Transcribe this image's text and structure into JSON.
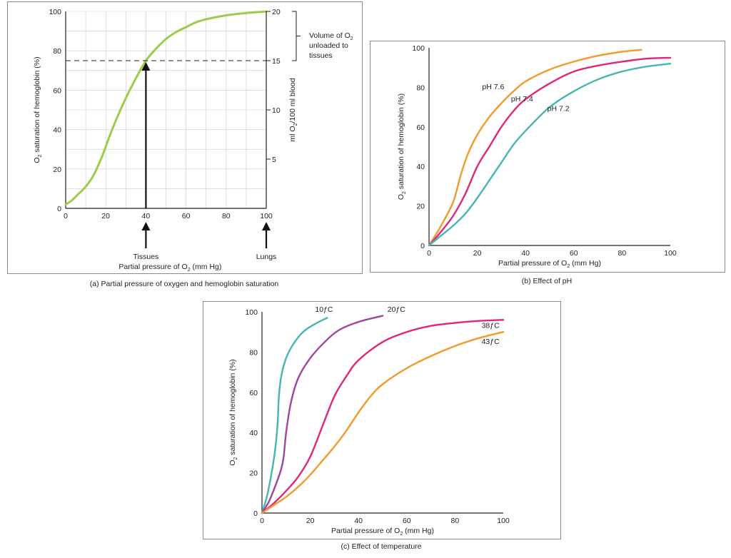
{
  "colors": {
    "green": "#9bcc4e",
    "orange": "#f39a2c",
    "magenta": "#e0267a",
    "teal": "#45b6b4",
    "grid": "#cccccc",
    "axis": "#222222"
  },
  "chart_data": [
    {
      "id": "a",
      "type": "line",
      "caption": "(a) Partial pressure of oxygen and hemoglobin saturation",
      "xlabel_main": "Partial pressure of O",
      "xlabel_sub": "2",
      "xlabel_end": " (mm Hg)",
      "ylabel_main": "O",
      "ylabel_sub": "2",
      "ylabel_end": " saturation of hemoglobin (%)",
      "y2label_main": "ml O",
      "y2label_sub": "2",
      "y2label_end": "/100 ml blood",
      "xlim": [
        0,
        100
      ],
      "ylim": [
        0,
        100
      ],
      "y2lim": [
        0,
        20
      ],
      "x_ticks": [
        "0",
        "20",
        "40",
        "60",
        "80",
        "100"
      ],
      "y_ticks": [
        "0",
        "20",
        "40",
        "60",
        "80",
        "100"
      ],
      "y2_ticks": [
        "5",
        "10",
        "15",
        "20"
      ],
      "grid": true,
      "series": [
        {
          "color": "#9bcc4e",
          "x": [
            0,
            3,
            6,
            10,
            14,
            18,
            22,
            26,
            30,
            35,
            40,
            45,
            50,
            55,
            60,
            65,
            70,
            80,
            90,
            100
          ],
          "y": [
            2,
            4,
            7,
            11,
            17,
            26,
            37,
            47,
            56,
            66,
            75,
            81,
            86,
            89.5,
            92,
            94.5,
            96,
            98,
            99.2,
            100
          ]
        }
      ],
      "dashed_line_y": 75,
      "arrow_at_x": 40,
      "annotations": {
        "volume_line1": "Volume of O",
        "volume_sub": "2",
        "volume_line2": "unloaded to",
        "volume_line3": "tissues",
        "tissues": "Tissues",
        "lungs": "Lungs"
      }
    },
    {
      "id": "b",
      "type": "line",
      "caption": "(b) Effect of pH",
      "xlabel_main": "Partial pressure of O",
      "xlabel_sub": "2",
      "xlabel_end": " (mm Hg)",
      "ylabel_main": "O",
      "ylabel_sub": "2",
      "ylabel_end": " saturation of hemoglobin (%)",
      "xlim": [
        0,
        100
      ],
      "ylim": [
        0,
        100
      ],
      "x_ticks": [
        "0",
        "20",
        "40",
        "60",
        "80",
        "100"
      ],
      "y_ticks": [
        "0",
        "20",
        "40",
        "60",
        "80",
        "100"
      ],
      "grid": false,
      "series": [
        {
          "name": "pH 7.6",
          "color": "#f39a2c",
          "x": [
            0,
            5,
            10,
            13,
            16,
            20,
            25,
            30,
            35,
            40,
            50,
            60,
            70,
            80,
            88
          ],
          "y": [
            0,
            10,
            22,
            35,
            46,
            56,
            65,
            72,
            78,
            83,
            89,
            93,
            96,
            98,
            99
          ]
        },
        {
          "name": "pH 7.4",
          "color": "#e0267a",
          "x": [
            0,
            5,
            10,
            15,
            20,
            25,
            30,
            35,
            40,
            50,
            60,
            70,
            80,
            90,
            100
          ],
          "y": [
            0,
            7,
            15,
            26,
            40,
            50,
            60,
            68,
            74,
            82,
            88,
            91,
            93,
            94.5,
            95
          ]
        },
        {
          "name": "pH 7.2",
          "color": "#45b6b4",
          "x": [
            0,
            5,
            10,
            15,
            20,
            25,
            30,
            35,
            40,
            50,
            60,
            70,
            80,
            90,
            100
          ],
          "y": [
            0,
            5,
            10,
            16,
            24,
            33,
            42,
            51,
            58,
            70,
            78,
            84,
            88,
            90.5,
            92
          ]
        }
      ],
      "labels": [
        {
          "text": "pH 7.6",
          "x": 22,
          "y": 79
        },
        {
          "text": "pH 7.4",
          "x": 34,
          "y": 73
        },
        {
          "text": "pH 7.2",
          "x": 49,
          "y": 68
        }
      ]
    },
    {
      "id": "c",
      "type": "line",
      "caption": "(c) Effect of temperature",
      "xlabel_main": "Partial pressure of O",
      "xlabel_sub": "2",
      "xlabel_end": " (mm Hg)",
      "ylabel_main": "O",
      "ylabel_sub": "2",
      "ylabel_end": " saturation of hemoglobin (%)",
      "xlim": [
        0,
        100
      ],
      "ylim": [
        0,
        100
      ],
      "x_ticks": [
        "0",
        "20",
        "40",
        "60",
        "80",
        "100"
      ],
      "y_ticks": [
        "0",
        "20",
        "40",
        "60",
        "80",
        "100"
      ],
      "grid": false,
      "series": [
        {
          "name": "10ƒC",
          "color": "#45b6b4",
          "x": [
            0,
            2,
            4,
            5.5,
            6.5,
            7,
            8,
            10,
            13,
            17,
            22,
            27
          ],
          "y": [
            0,
            8,
            20,
            32,
            45,
            58,
            68,
            77,
            84,
            90,
            94,
            97
          ]
        },
        {
          "name": "20ƒC",
          "color": "#a044a0",
          "x": [
            0,
            3,
            6,
            8,
            9,
            10,
            12,
            15,
            20,
            26,
            32,
            40,
            50
          ],
          "y": [
            0,
            6,
            15,
            22,
            28,
            40,
            55,
            67,
            77,
            85,
            91,
            95,
            98
          ]
        },
        {
          "name": "38ƒC",
          "color": "#e0267a",
          "x": [
            0,
            5,
            10,
            15,
            20,
            25,
            30,
            35,
            40,
            50,
            60,
            70,
            80,
            90,
            100
          ],
          "y": [
            0,
            5,
            11,
            18,
            28,
            43,
            58,
            68,
            76,
            85,
            90,
            93,
            94.5,
            95.5,
            96
          ]
        },
        {
          "name": "43ƒC",
          "color": "#f39a2c",
          "x": [
            0,
            5,
            10,
            15,
            20,
            25,
            30,
            35,
            40,
            45,
            50,
            60,
            70,
            80,
            90,
            100
          ],
          "y": [
            0,
            4,
            8,
            13,
            19,
            26,
            33,
            41,
            50,
            58,
            64,
            72,
            78,
            83,
            87,
            90
          ]
        }
      ],
      "labels": [
        {
          "text": "10ƒC",
          "x": 22,
          "y": 100,
          "anchor": "start"
        },
        {
          "text": "20ƒC",
          "x": 52,
          "y": 100,
          "anchor": "start"
        },
        {
          "text": "38ƒC",
          "x": 91,
          "y": 92,
          "anchor": "start"
        },
        {
          "text": "43ƒC",
          "x": 91,
          "y": 84,
          "anchor": "start"
        }
      ]
    }
  ]
}
